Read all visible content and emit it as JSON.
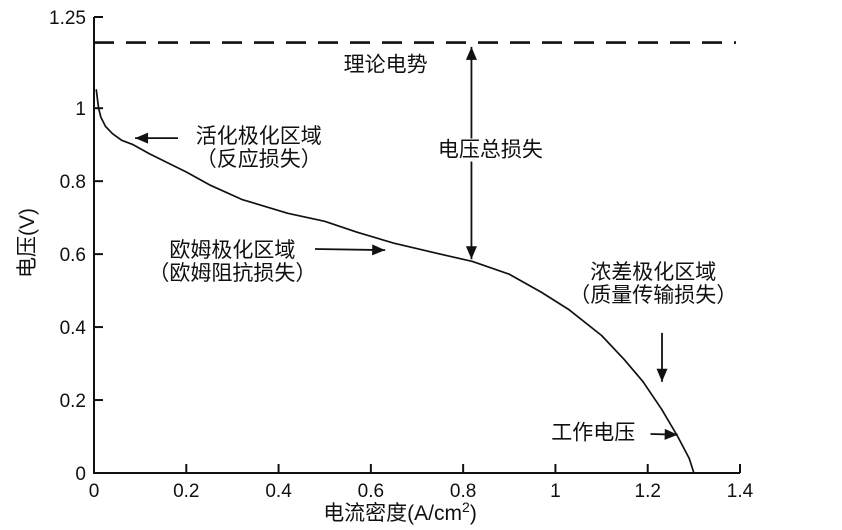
{
  "chart_data": {
    "type": "line",
    "title": "",
    "xlabel": "电流密度(A/cm²)",
    "xlabel_parts": {
      "prefix": "电流密度(A/cm",
      "sup": "2",
      "suffix": ")"
    },
    "ylabel": "电压(V)",
    "xlim": [
      0,
      1.4
    ],
    "ylim": [
      0,
      1.25
    ],
    "grid": false,
    "legend": "none",
    "xticks": {
      "values": [
        0,
        0.2,
        0.4,
        0.6,
        0.8,
        1.0,
        1.2,
        1.4
      ],
      "labels": [
        "0",
        "0.2",
        "0.4",
        "0.6",
        "0.8",
        "1",
        "1.2",
        "1.4"
      ]
    },
    "yticks": {
      "values": [
        0,
        0.2,
        0.4,
        0.6,
        0.8,
        1.0,
        1.25
      ],
      "labels": [
        "0",
        "0.2",
        "0.4",
        "0.6",
        "0.8",
        "1",
        "1.25"
      ]
    },
    "theoretical_potential": {
      "value": 1.18,
      "line_style": "dashed"
    },
    "series": [
      {
        "name": "polarization-curve",
        "points": [
          [
            0.005,
            1.05
          ],
          [
            0.01,
            1.0
          ],
          [
            0.015,
            0.975
          ],
          [
            0.025,
            0.95
          ],
          [
            0.04,
            0.93
          ],
          [
            0.06,
            0.912
          ],
          [
            0.085,
            0.9
          ],
          [
            0.12,
            0.875
          ],
          [
            0.16,
            0.85
          ],
          [
            0.2,
            0.825
          ],
          [
            0.25,
            0.79
          ],
          [
            0.32,
            0.75
          ],
          [
            0.42,
            0.712
          ],
          [
            0.5,
            0.69
          ],
          [
            0.57,
            0.66
          ],
          [
            0.65,
            0.63
          ],
          [
            0.75,
            0.6
          ],
          [
            0.82,
            0.58
          ],
          [
            0.9,
            0.545
          ],
          [
            0.97,
            0.495
          ],
          [
            1.03,
            0.447
          ],
          [
            1.1,
            0.377
          ],
          [
            1.15,
            0.31
          ],
          [
            1.19,
            0.25
          ],
          [
            1.23,
            0.175
          ],
          [
            1.265,
            0.1
          ],
          [
            1.29,
            0.04
          ],
          [
            1.3,
            0.0
          ]
        ]
      }
    ],
    "annotations": [
      {
        "id": "theoretical-potential-label",
        "lines": [
          "理论电势"
        ],
        "x": 0.632,
        "y": 1.118,
        "bg": false
      },
      {
        "id": "total-voltage-loss-label",
        "lines": [
          "电压总损失"
        ],
        "x": 0.859,
        "y": 0.885,
        "bg": true
      },
      {
        "id": "activation-region-label",
        "lines": [
          "活化极化区域",
          "（反应损失）"
        ],
        "x": 0.357,
        "y": 0.89,
        "bg": false
      },
      {
        "id": "ohmic-region-label",
        "lines": [
          "欧姆极化区域",
          "（欧姆阻抗损失）"
        ],
        "x": 0.3,
        "y": 0.578,
        "bg": false
      },
      {
        "id": "concentration-region-label",
        "lines": [
          "浓差极化区域",
          "（质量传输损失）"
        ],
        "x": 1.212,
        "y": 0.518,
        "bg": false
      },
      {
        "id": "operating-voltage-label",
        "lines": [
          "工作电压"
        ],
        "x": 1.082,
        "y": 0.11,
        "bg": false
      }
    ],
    "arrows": [
      {
        "id": "total-voltage-loss-arrow",
        "from": [
          0.818,
          1.168
        ],
        "to": [
          0.818,
          0.586
        ],
        "heads": "both"
      },
      {
        "id": "activation-region-arrow",
        "from": [
          0.182,
          0.918
        ],
        "to": [
          0.089,
          0.918
        ],
        "heads": "end"
      },
      {
        "id": "ohmic-region-arrow",
        "from": [
          0.479,
          0.614
        ],
        "to": [
          0.631,
          0.611
        ],
        "heads": "end"
      },
      {
        "id": "concentration-region-arrow",
        "from": [
          1.231,
          0.384
        ],
        "to": [
          1.231,
          0.25
        ],
        "heads": "end"
      },
      {
        "id": "operating-voltage-arrow",
        "from": [
          1.206,
          0.107
        ],
        "to": [
          1.265,
          0.105
        ],
        "heads": "end"
      }
    ],
    "ink_color": "#111111",
    "background_color": "#ffffff"
  }
}
